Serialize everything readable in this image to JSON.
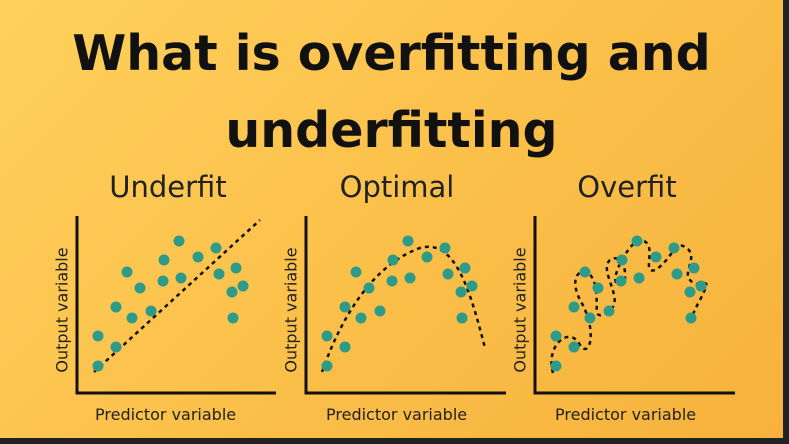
{
  "heading": {
    "line1": "What is overfitting and",
    "line2": "underfitting"
  },
  "colors": {
    "background": "#fbc24c",
    "point": "#2e9a88",
    "text": "#111111"
  },
  "panels": [
    {
      "title": "Underfit",
      "xlabel": "Predictor variable",
      "ylabel": "Output variable",
      "fit": "straight-line"
    },
    {
      "title": "Optimal",
      "xlabel": "Predictor variable",
      "ylabel": "Output variable",
      "fit": "smooth-curve"
    },
    {
      "title": "Overfit",
      "xlabel": "Predictor variable",
      "ylabel": "Output variable",
      "fit": "wiggly-curve"
    }
  ]
}
